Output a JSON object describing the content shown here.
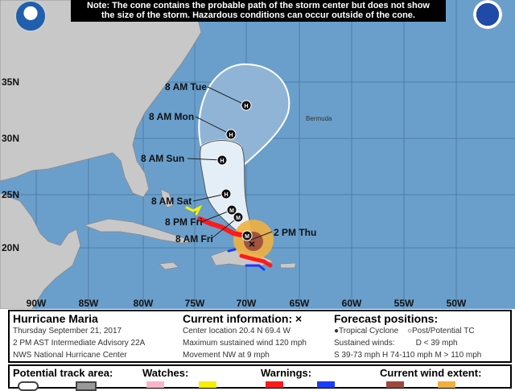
{
  "note": {
    "line1": "Note: The cone contains the probable path of the storm center but does not show",
    "line2": "the size of the storm. Hazardous conditions can occur outside of the cone."
  },
  "map": {
    "latitudes": [
      "35N",
      "30N",
      "25N",
      "20N"
    ],
    "longitudes": [
      "90W",
      "85W",
      "80W",
      "75W",
      "70W",
      "65W",
      "60W",
      "55W",
      "50W"
    ],
    "place_labels": {
      "bermuda": "Bermuda"
    },
    "forecast_points": [
      {
        "label": "8 AM Tue",
        "category": "H"
      },
      {
        "label": "8 AM Mon",
        "category": "H"
      },
      {
        "label": "8 AM Sun",
        "category": "H"
      },
      {
        "label": "8 AM Sat",
        "category": "H"
      },
      {
        "label": "8 PM Fri",
        "category": "M"
      },
      {
        "label": "8 AM Fri",
        "category": "M"
      },
      {
        "label": "2 PM Thu",
        "category": "M"
      }
    ],
    "colors": {
      "ocean": "#6a9fcc",
      "land": "#c8c8c8",
      "cone": "#e4eef6",
      "hurricane_warning": "#ff1a1a",
      "trop_storm_warning": "#1a3cff",
      "trop_storm_watch": "#f3f000",
      "hurricane_wind": "#9c4a3c",
      "trop_storm_wind": "#f0b040"
    }
  },
  "info": {
    "storm_name": "Hurricane Maria",
    "date": "Thursday September 21, 2017",
    "advisory": "2 PM AST Intermediate Advisory 22A",
    "center": "NWS National Hurricane Center",
    "current_title": "Current information: ×",
    "location": "Center location 20.4 N 69.4 W",
    "max_wind": "Maximum sustained wind 120 mph",
    "movement": "Movement NW at 9 mph",
    "forecast_title": "Forecast positions:",
    "tropical_cyclone": "Tropical Cyclone",
    "post_tc": "Post/Potential TC",
    "sustained": "Sustained winds:",
    "d": "D < 39 mph",
    "s": "S 39-73 mph",
    "h": "H 74-110 mph",
    "m": "M > 110 mph"
  },
  "legend": {
    "track": "Potential track area:",
    "watches": "Watches:",
    "warnings": "Warnings:",
    "wind": "Current wind extent:"
  }
}
